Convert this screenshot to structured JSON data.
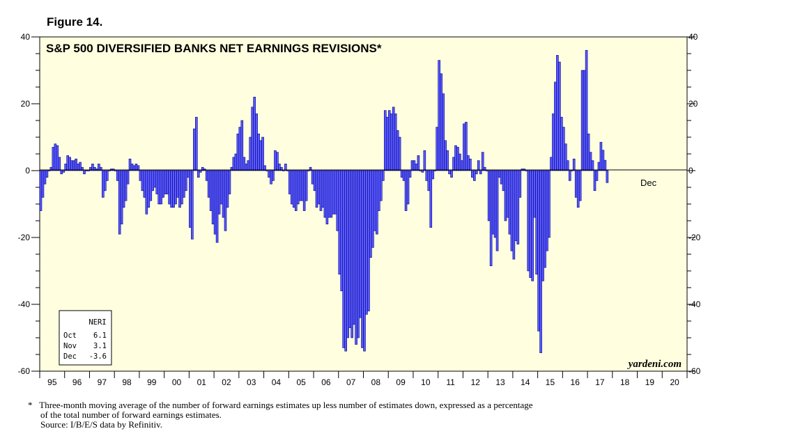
{
  "figure_label": "Figure 14.",
  "footnote": {
    "marker": "*",
    "line1": "Three-month moving average of the number of forward earnings estimates up less number of estimates down, expressed as a percentage",
    "line2": "of the total number of forward earnings estimates.",
    "source": "Source: I/B/E/S data by Refinitiv."
  },
  "colors": {
    "plot_bg": "#ffffe0",
    "bar_fill": "#5a5aff",
    "bar_stroke": "#000080"
  },
  "chart_data": {
    "type": "bar",
    "title": "S&P 500 DIVERSIFIED BANKS NET EARNINGS REVISIONS*",
    "ylim": [
      -60,
      40
    ],
    "yticks": [
      -60,
      -40,
      -20,
      0,
      20,
      40
    ],
    "xlim": [
      1995,
      2021
    ],
    "year_labels": [
      "95",
      "96",
      "97",
      "98",
      "99",
      "00",
      "01",
      "02",
      "03",
      "04",
      "05",
      "06",
      "07",
      "08",
      "09",
      "10",
      "11",
      "12",
      "13",
      "14",
      "15",
      "16",
      "17",
      "18",
      "19",
      "20"
    ],
    "end_annotation": "Dec",
    "watermark": "yardeni.com",
    "legend_table": {
      "title": "NERI",
      "rows": [
        {
          "month": "Oct",
          "value": "6.1"
        },
        {
          "month": "Nov",
          "value": "3.1"
        },
        {
          "month": "Dec",
          "value": "-3.6"
        }
      ]
    },
    "series": [
      {
        "name": "NERI",
        "start": "1995-01",
        "frequency": "monthly",
        "values": [
          -12,
          -8,
          -4,
          -2,
          0,
          1,
          7,
          8,
          7.5,
          4,
          -1,
          -0.5,
          2,
          4.5,
          4,
          3,
          3,
          3.5,
          2,
          2.5,
          1,
          -1,
          0,
          0,
          1,
          2,
          1,
          0.5,
          2,
          1,
          -8,
          -6,
          -3,
          0,
          0.5,
          0.5,
          0,
          -3,
          -19,
          -16,
          -11,
          -9,
          -4,
          3.5,
          2,
          1.5,
          2,
          1.5,
          -3,
          -6,
          -8,
          -13,
          -11,
          -9,
          -6,
          -5,
          -7,
          -10,
          -10,
          -8,
          -7,
          -7,
          -10,
          -11,
          -11,
          -10,
          -8,
          -11,
          -10,
          -8,
          -6,
          -2,
          -17,
          -20.5,
          12.5,
          16,
          -2,
          -0.5,
          1,
          0.5,
          -3,
          -8,
          -12,
          -16,
          -19,
          -21.5,
          -13,
          -10,
          -14,
          -18,
          -11,
          -7,
          1,
          4,
          5,
          11,
          13,
          15,
          4,
          2,
          3,
          10,
          19,
          22,
          17,
          11,
          9,
          10,
          1.5,
          0,
          -2,
          -4,
          -3,
          6,
          5.5,
          2,
          1,
          0,
          2,
          0,
          -7,
          -10,
          -11,
          -12,
          -10,
          -9,
          -9,
          -12,
          -9,
          0,
          1,
          -4,
          -6,
          -11,
          -10,
          -12,
          -11,
          -14,
          -16,
          -14,
          -14,
          -13,
          -13,
          -18,
          -31,
          -36,
          -53,
          -54,
          -50,
          -47,
          -50,
          -46,
          -52,
          -50,
          -44,
          -53,
          -54,
          -43,
          -42,
          -26,
          -23,
          -18,
          -19,
          -12,
          -9,
          -3,
          18,
          16,
          18,
          17,
          19,
          17,
          12,
          10,
          -2,
          -3,
          -12,
          -10,
          -2,
          3,
          3,
          2,
          4.5,
          0,
          -0.5,
          6,
          -3,
          -6,
          -17,
          -2.5,
          0,
          13,
          33,
          29,
          23,
          9,
          6,
          -1,
          -2,
          4,
          7.5,
          7,
          5,
          3,
          14,
          14.5,
          4.5,
          3.5,
          -2,
          -3,
          -1,
          3,
          -1,
          5.5,
          1,
          0,
          -15,
          -28.5,
          -19,
          -20,
          -24,
          -2,
          -4,
          -6,
          -15,
          -14,
          -19,
          -24,
          -26.5,
          -21,
          -22,
          -8,
          0.5,
          0.5,
          0,
          -30,
          -32,
          -33,
          -14,
          -31,
          -48,
          -54.5,
          -33,
          -29,
          -24,
          -20,
          4,
          17,
          26.5,
          34.5,
          32.5,
          16,
          13,
          8,
          3,
          -3,
          0,
          3.5,
          -8,
          -11,
          -9,
          30,
          30,
          36,
          11,
          5.5,
          3,
          -6,
          -3,
          2.5,
          8.5,
          6.1,
          3.1,
          -3.6
        ]
      }
    ]
  }
}
